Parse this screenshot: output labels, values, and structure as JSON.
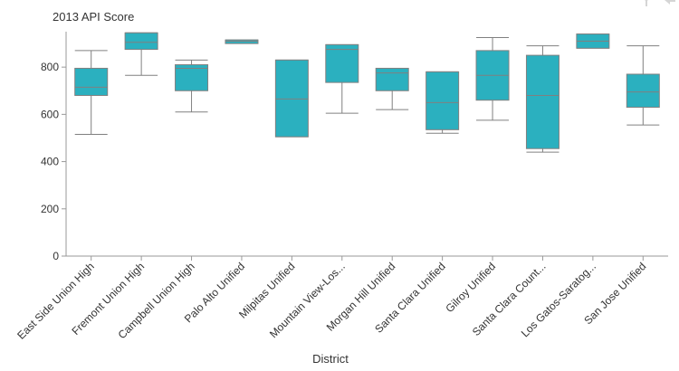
{
  "chart_data": {
    "type": "box",
    "ylabel": "2013 API Score",
    "xlabel": "District",
    "ylim": [
      0,
      950
    ],
    "yticks": [
      0,
      200,
      400,
      600,
      800
    ],
    "grid": false,
    "box_color": "#2bb0bf",
    "outline_color": "#808080",
    "categories": [
      "East Side Union High",
      "Fremont Union High",
      "Campbell Union High",
      "Palo Alto Unified",
      "Milpitas Unified",
      "Mountain View-Los...",
      "Morgan Hill Unified",
      "Santa Clara Unified",
      "Gilroy Unified",
      "Santa Clara Count...",
      "Los Gatos-Saratog...",
      "San Jose Unified"
    ],
    "boxes": [
      {
        "min": 515,
        "q1": 680,
        "median": 715,
        "q3": 795,
        "max": 870
      },
      {
        "min": 765,
        "q1": 875,
        "median": 905,
        "q3": 945,
        "max": 945
      },
      {
        "min": 610,
        "q1": 700,
        "median": 795,
        "q3": 810,
        "max": 830
      },
      {
        "min": 905,
        "q1": 905,
        "median": 910,
        "q3": 915,
        "max": 915
      },
      {
        "min": 505,
        "q1": 505,
        "median": 665,
        "q3": 830,
        "max": 830
      },
      {
        "min": 605,
        "q1": 735,
        "median": 875,
        "q3": 895,
        "max": 895
      },
      {
        "min": 620,
        "q1": 700,
        "median": 775,
        "q3": 795,
        "max": 795
      },
      {
        "min": 520,
        "q1": 535,
        "median": 650,
        "q3": 780,
        "max": 780
      },
      {
        "min": 575,
        "q1": 660,
        "median": 765,
        "q3": 870,
        "max": 925
      },
      {
        "min": 440,
        "q1": 455,
        "median": 680,
        "q3": 850,
        "max": 890
      },
      {
        "min": 880,
        "q1": 880,
        "median": 910,
        "q3": 940,
        "max": 940
      },
      {
        "min": 555,
        "q1": 630,
        "median": 695,
        "q3": 770,
        "max": 890
      }
    ]
  }
}
